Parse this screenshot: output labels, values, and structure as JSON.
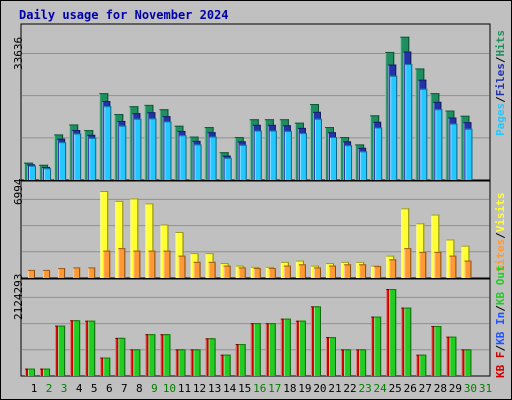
{
  "title": "Daily usage for November 2024",
  "labels": {
    "p1": {
      "max": "33636",
      "right": [
        "Pages",
        "/",
        "Files",
        "/",
        "Hits"
      ]
    },
    "p2": {
      "max": "6994",
      "right": [
        "Sites",
        "/",
        "Visits"
      ]
    },
    "p3": {
      "max": "2124293",
      "right": [
        "KB F",
        "/",
        "KB In",
        "/",
        "KB Out"
      ]
    }
  },
  "colors": {
    "hits": "#1f8f5f",
    "files": "#2233aa",
    "pages": "#22c8ff",
    "visits": "#ffff33",
    "sites": "#ff9933",
    "kbf": "#cc0000",
    "kbin": "#2255ff",
    "kbout": "#22cc22",
    "title": "#0000aa",
    "weekday": "#000000",
    "weekend": "#008000"
  },
  "chart_data": [
    {
      "type": "bar",
      "title": "Daily usage for November 2024",
      "categories": [
        "1",
        "2",
        "3",
        "4",
        "5",
        "6",
        "7",
        "8",
        "9",
        "10",
        "11",
        "12",
        "13",
        "14",
        "15",
        "16",
        "17",
        "18",
        "19",
        "20",
        "21",
        "22",
        "23",
        "24",
        "25",
        "26",
        "27",
        "28",
        "29",
        "30",
        "31"
      ],
      "weekend_days": [
        2,
        3,
        9,
        10,
        16,
        17,
        23,
        24,
        30,
        31
      ],
      "ylim": [
        0,
        33636
      ],
      "series": [
        {
          "name": "Hits",
          "values": [
            4000,
            3500,
            10500,
            12800,
            11500,
            20000,
            15200,
            17000,
            17300,
            16300,
            12500,
            10000,
            12200,
            6400,
            9900,
            14000,
            14000,
            14000,
            13200,
            17500,
            12200,
            9900,
            8200,
            14900,
            29500,
            33000,
            25700,
            20000,
            16000,
            14800,
            0
          ]
        },
        {
          "name": "Files",
          "values": [
            3600,
            3000,
            9500,
            11500,
            10400,
            18200,
            13600,
            15400,
            15600,
            14700,
            11300,
            9000,
            11000,
            5600,
            8900,
            12700,
            12700,
            12600,
            12000,
            15700,
            11000,
            8900,
            7400,
            13400,
            26600,
            29600,
            23100,
            18000,
            14400,
            13300,
            0
          ]
        },
        {
          "name": "Pages",
          "values": [
            3300,
            2700,
            8700,
            10700,
            9700,
            17000,
            12500,
            14100,
            14200,
            13500,
            10300,
            8200,
            10000,
            5100,
            8100,
            11400,
            11400,
            11300,
            10800,
            14100,
            9900,
            8000,
            6600,
            12100,
            24000,
            26700,
            21000,
            16300,
            13000,
            11800,
            0
          ]
        }
      ]
    },
    {
      "type": "bar",
      "categories": [
        "1",
        "2",
        "3",
        "4",
        "5",
        "6",
        "7",
        "8",
        "9",
        "10",
        "11",
        "12",
        "13",
        "14",
        "15",
        "16",
        "17",
        "18",
        "19",
        "20",
        "21",
        "22",
        "23",
        "24",
        "25",
        "26",
        "27",
        "28",
        "29",
        "30",
        "31"
      ],
      "ylim": [
        0,
        6994
      ],
      "series": [
        {
          "name": "Visits",
          "values": [
            0,
            0,
            0,
            0,
            0,
            6994,
            6200,
            6400,
            6000,
            4300,
            3700,
            2000,
            2000,
            1200,
            1000,
            900,
            900,
            1300,
            1400,
            1000,
            1200,
            1300,
            1300,
            1000,
            1800,
            5600,
            4400,
            5100,
            3100,
            2600,
            0
          ]
        },
        {
          "name": "Sites",
          "values": [
            650,
            650,
            800,
            850,
            850,
            2200,
            2400,
            2200,
            2200,
            2200,
            1800,
            1300,
            1300,
            1000,
            850,
            800,
            800,
            1000,
            1100,
            850,
            1000,
            1100,
            1100,
            950,
            1500,
            2400,
            2100,
            2100,
            1800,
            1400,
            0
          ]
        }
      ]
    },
    {
      "type": "bar",
      "categories": [
        "1",
        "2",
        "3",
        "4",
        "5",
        "6",
        "7",
        "8",
        "9",
        "10",
        "11",
        "12",
        "13",
        "14",
        "15",
        "16",
        "17",
        "18",
        "19",
        "20",
        "21",
        "22",
        "23",
        "24",
        "25",
        "26",
        "27",
        "28",
        "29",
        "30",
        "31"
      ],
      "ylim": [
        0,
        2124293
      ],
      "series": [
        {
          "name": "KB F",
          "values": [
            180000,
            180000,
            1230000,
            1360000,
            1350000,
            450000,
            930000,
            650000,
            1020000,
            1020000,
            650000,
            650000,
            920000,
            520000,
            780000,
            1290000,
            1290000,
            1400000,
            1350000,
            1700000,
            950000,
            650000,
            650000,
            1450000,
            2124293,
            1670000,
            520000,
            1220000,
            960000,
            650000,
            0
          ]
        },
        {
          "name": "KB In",
          "values": [
            0,
            0,
            0,
            0,
            0,
            0,
            0,
            0,
            0,
            0,
            0,
            0,
            0,
            0,
            0,
            0,
            0,
            0,
            0,
            0,
            0,
            0,
            0,
            0,
            0,
            0,
            0,
            0,
            0,
            0,
            0
          ]
        },
        {
          "name": "KB Out",
          "values": [
            180000,
            180000,
            1230000,
            1360000,
            1350000,
            450000,
            930000,
            650000,
            1020000,
            1020000,
            650000,
            650000,
            920000,
            520000,
            780000,
            1290000,
            1290000,
            1400000,
            1350000,
            1700000,
            950000,
            650000,
            650000,
            1450000,
            2124293,
            1670000,
            520000,
            1220000,
            960000,
            650000,
            0
          ]
        }
      ]
    }
  ]
}
